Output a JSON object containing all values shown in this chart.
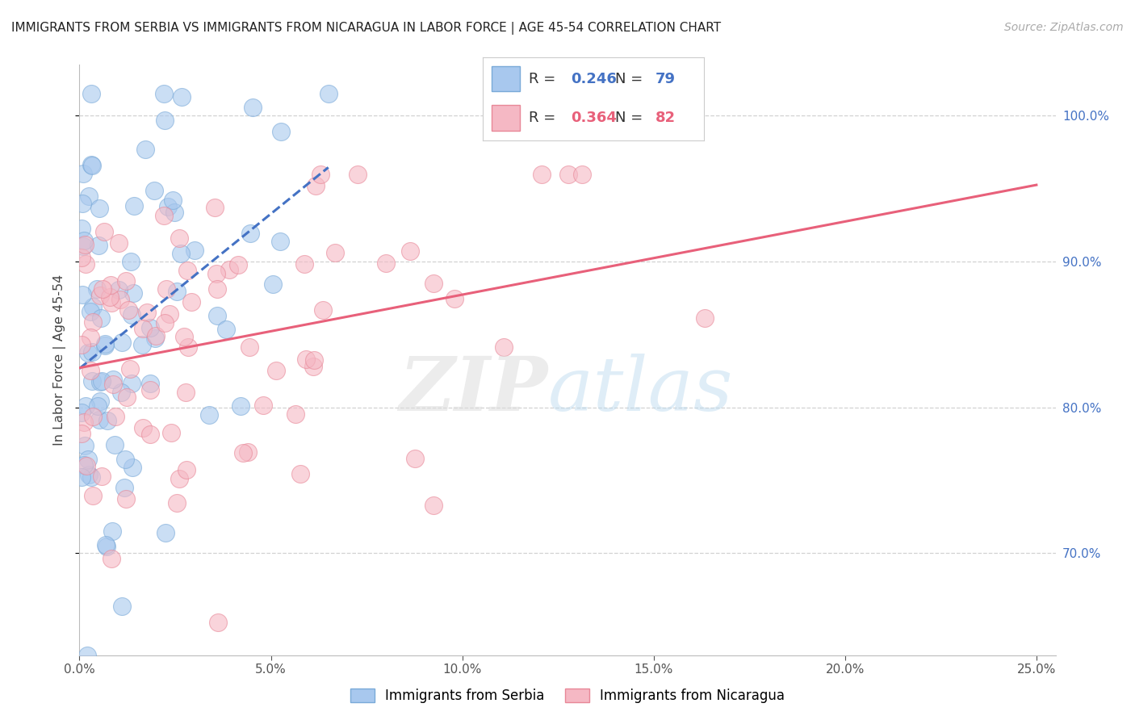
{
  "title": "IMMIGRANTS FROM SERBIA VS IMMIGRANTS FROM NICARAGUA IN LABOR FORCE | AGE 45-54 CORRELATION CHART",
  "source": "Source: ZipAtlas.com",
  "ylabel": "In Labor Force | Age 45-54",
  "xlim": [
    0.0,
    25.5
  ],
  "ylim": [
    63.0,
    103.5
  ],
  "yticks": [
    70.0,
    80.0,
    90.0,
    100.0
  ],
  "xticks": [
    0.0,
    5.0,
    10.0,
    15.0,
    20.0,
    25.0
  ],
  "serbia_color": "#A8C8EE",
  "serbia_edge": "#7AAAD8",
  "nicaragua_color": "#F5B8C4",
  "nicaragua_edge": "#E88898",
  "serbia_R": 0.246,
  "serbia_N": 79,
  "nicaragua_R": 0.364,
  "nicaragua_N": 82,
  "serbia_line_color": "#4472C4",
  "nicaragua_line_color": "#E8607A",
  "legend_R_color": "#4472C4",
  "background_color": "#FFFFFF",
  "serbia_seed": 42,
  "nicaragua_seed": 99
}
